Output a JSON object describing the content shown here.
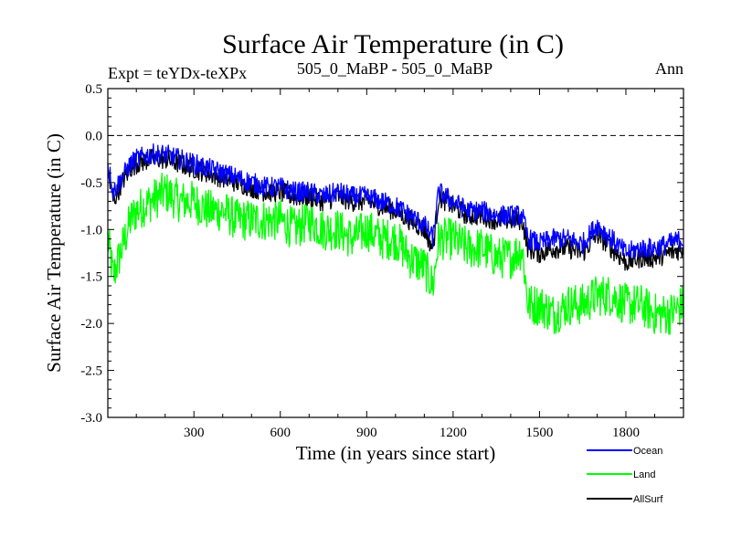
{
  "chart_data": {
    "type": "line",
    "title": "Surface Air Temperature (in C)",
    "subtitle_left": "Expt = teYDx-teXPx",
    "subtitle_center": "505_0_MaBP - 505_0_MaBP",
    "subtitle_right": "Ann",
    "xlabel": "Time (in years since start)",
    "ylabel": "Surface Air Temperature (in C)",
    "xlim": [
      1,
      2000
    ],
    "ylim": [
      -3.0,
      0.5
    ],
    "xticks": [
      300,
      600,
      900,
      1200,
      1500,
      1800
    ],
    "xtick_labels": [
      "300",
      "600",
      "900",
      "1200",
      "1500",
      "1800"
    ],
    "yticks": [
      0.5,
      0.0,
      -0.5,
      -1.0,
      -1.5,
      -2.0,
      -2.5,
      -3.0
    ],
    "ytick_labels": [
      "0.5",
      "0.0",
      "-0.5",
      "-1.0",
      "-1.5",
      "-2.0",
      "-2.5",
      "-3.0"
    ],
    "reference_line": 0.0,
    "legend_position": "bottom-right",
    "series": [
      {
        "name": "Land",
        "color": "#00ff00",
        "x": [
          1,
          20,
          50,
          80,
          100,
          150,
          200,
          250,
          300,
          350,
          400,
          450,
          500,
          550,
          600,
          650,
          700,
          750,
          800,
          850,
          900,
          950,
          1000,
          1050,
          1100,
          1130,
          1150,
          1200,
          1250,
          1300,
          1350,
          1400,
          1440,
          1460,
          1500,
          1550,
          1600,
          1650,
          1700,
          1750,
          1800,
          1850,
          1900,
          1950,
          2000
        ],
        "values": [
          -1.1,
          -1.5,
          -1.2,
          -0.9,
          -0.8,
          -0.7,
          -0.6,
          -0.7,
          -0.7,
          -0.8,
          -0.8,
          -0.9,
          -0.9,
          -0.9,
          -0.9,
          -1.0,
          -0.9,
          -1.0,
          -1.0,
          -1.1,
          -1.0,
          -1.1,
          -1.1,
          -1.3,
          -1.4,
          -1.6,
          -1.1,
          -1.1,
          -1.2,
          -1.2,
          -1.3,
          -1.3,
          -1.2,
          -1.8,
          -1.8,
          -1.9,
          -1.8,
          -1.8,
          -1.7,
          -1.7,
          -1.8,
          -1.8,
          -1.9,
          -1.9,
          -1.8
        ]
      },
      {
        "name": "AllSurf",
        "color": "#000000",
        "x": [
          1,
          20,
          50,
          80,
          100,
          150,
          200,
          250,
          300,
          350,
          400,
          450,
          500,
          550,
          600,
          650,
          700,
          750,
          800,
          850,
          900,
          950,
          1000,
          1050,
          1100,
          1130,
          1150,
          1200,
          1250,
          1300,
          1350,
          1400,
          1440,
          1460,
          1500,
          1550,
          1600,
          1650,
          1700,
          1750,
          1800,
          1850,
          1900,
          1950,
          2000
        ],
        "values": [
          -0.4,
          -0.7,
          -0.5,
          -0.35,
          -0.3,
          -0.25,
          -0.25,
          -0.3,
          -0.35,
          -0.4,
          -0.45,
          -0.5,
          -0.55,
          -0.6,
          -0.6,
          -0.65,
          -0.65,
          -0.7,
          -0.65,
          -0.7,
          -0.7,
          -0.75,
          -0.8,
          -0.9,
          -1.0,
          -1.2,
          -0.65,
          -0.75,
          -0.85,
          -0.85,
          -0.9,
          -0.9,
          -0.9,
          -1.2,
          -1.25,
          -1.2,
          -1.2,
          -1.25,
          -1.05,
          -1.2,
          -1.35,
          -1.3,
          -1.3,
          -1.25,
          -1.2
        ]
      },
      {
        "name": "Ocean",
        "color": "#0000ff",
        "x": [
          1,
          20,
          50,
          80,
          100,
          150,
          200,
          250,
          300,
          350,
          400,
          450,
          500,
          550,
          600,
          650,
          700,
          750,
          800,
          850,
          900,
          950,
          1000,
          1050,
          1100,
          1130,
          1150,
          1200,
          1250,
          1300,
          1350,
          1400,
          1440,
          1460,
          1500,
          1550,
          1600,
          1650,
          1700,
          1750,
          1800,
          1850,
          1900,
          1950,
          2000
        ],
        "values": [
          -0.3,
          -0.6,
          -0.45,
          -0.3,
          -0.25,
          -0.2,
          -0.2,
          -0.25,
          -0.3,
          -0.35,
          -0.4,
          -0.45,
          -0.5,
          -0.55,
          -0.55,
          -0.6,
          -0.6,
          -0.65,
          -0.6,
          -0.65,
          -0.65,
          -0.7,
          -0.75,
          -0.85,
          -0.95,
          -1.1,
          -0.6,
          -0.7,
          -0.8,
          -0.8,
          -0.85,
          -0.85,
          -0.85,
          -1.1,
          -1.15,
          -1.1,
          -1.1,
          -1.15,
          -0.95,
          -1.1,
          -1.25,
          -1.2,
          -1.2,
          -1.15,
          -1.1
        ]
      }
    ],
    "legend": [
      "Ocean",
      "Land",
      "AllSurf"
    ]
  }
}
